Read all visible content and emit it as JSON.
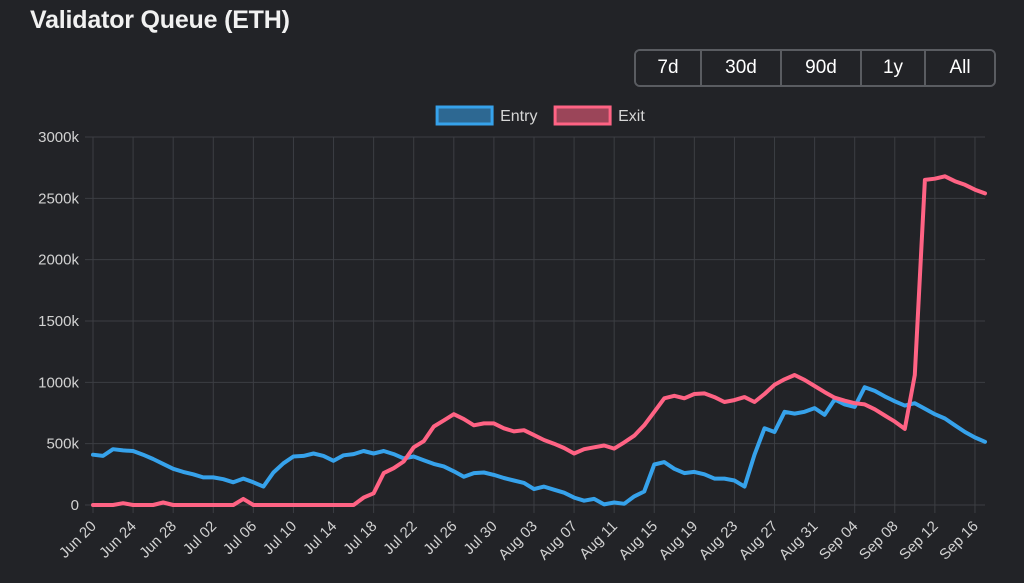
{
  "page": {
    "title": "Validator Queue (ETH)"
  },
  "range_buttons": [
    {
      "label": "7d"
    },
    {
      "label": "30d"
    },
    {
      "label": "90d"
    },
    {
      "label": "1y"
    },
    {
      "label": "All"
    }
  ],
  "chart_data": {
    "type": "line",
    "title": "Validator Queue (ETH)",
    "xlabel": "",
    "ylabel": "",
    "ylim": [
      0,
      3000000
    ],
    "y_ticks": [
      0,
      500000,
      1000000,
      1500000,
      2000000,
      2500000,
      3000000
    ],
    "y_tick_labels": [
      "0",
      "500k",
      "1000k",
      "1500k",
      "2000k",
      "2500k",
      "3000k"
    ],
    "x_tick_labels": [
      "Jun 20",
      "Jun 24",
      "Jun 28",
      "Jul 02",
      "Jul 06",
      "Jul 10",
      "Jul 14",
      "Jul 18",
      "Jul 22",
      "Jul 26",
      "Jul 30",
      "Aug 03",
      "Aug 07",
      "Aug 11",
      "Aug 15",
      "Aug 19",
      "Aug 23",
      "Aug 27",
      "Aug 31",
      "Sep 04",
      "Sep 08",
      "Sep 12",
      "Sep 16"
    ],
    "x_start": "Jun 20",
    "x_end": "Sep 17",
    "grid": true,
    "legend_position": "top",
    "series": [
      {
        "name": "Entry",
        "color": "#36a2eb",
        "points": [
          [
            "Jun 20",
            410000
          ],
          [
            "Jun 21",
            400000
          ],
          [
            "Jun 22",
            455000
          ],
          [
            "Jun 23",
            445000
          ],
          [
            "Jun 24",
            440000
          ],
          [
            "Jun 25",
            410000
          ],
          [
            "Jun 26",
            375000
          ],
          [
            "Jun 27",
            335000
          ],
          [
            "Jun 28",
            295000
          ],
          [
            "Jun 29",
            270000
          ],
          [
            "Jun 30",
            250000
          ],
          [
            "Jul 01",
            225000
          ],
          [
            "Jul 02",
            225000
          ],
          [
            "Jul 03",
            210000
          ],
          [
            "Jul 04",
            185000
          ],
          [
            "Jul 05",
            215000
          ],
          [
            "Jul 06",
            185000
          ],
          [
            "Jul 07",
            150000
          ],
          [
            "Jul 08",
            265000
          ],
          [
            "Jul 09",
            340000
          ],
          [
            "Jul 10",
            395000
          ],
          [
            "Jul 11",
            400000
          ],
          [
            "Jul 12",
            420000
          ],
          [
            "Jul 13",
            400000
          ],
          [
            "Jul 14",
            360000
          ],
          [
            "Jul 15",
            405000
          ],
          [
            "Jul 16",
            415000
          ],
          [
            "Jul 17",
            440000
          ],
          [
            "Jul 18",
            420000
          ],
          [
            "Jul 19",
            440000
          ],
          [
            "Jul 20",
            415000
          ],
          [
            "Jul 21",
            380000
          ],
          [
            "Jul 22",
            395000
          ],
          [
            "Jul 23",
            365000
          ],
          [
            "Jul 24",
            335000
          ],
          [
            "Jul 25",
            315000
          ],
          [
            "Jul 26",
            275000
          ],
          [
            "Jul 27",
            230000
          ],
          [
            "Jul 28",
            260000
          ],
          [
            "Jul 29",
            265000
          ],
          [
            "Jul 30",
            245000
          ],
          [
            "Jul 31",
            220000
          ],
          [
            "Aug 01",
            200000
          ],
          [
            "Aug 02",
            180000
          ],
          [
            "Aug 03",
            130000
          ],
          [
            "Aug 04",
            150000
          ],
          [
            "Aug 05",
            125000
          ],
          [
            "Aug 06",
            100000
          ],
          [
            "Aug 07",
            60000
          ],
          [
            "Aug 08",
            35000
          ],
          [
            "Aug 09",
            50000
          ],
          [
            "Aug 10",
            5000
          ],
          [
            "Aug 11",
            20000
          ],
          [
            "Aug 12",
            10000
          ],
          [
            "Aug 13",
            70000
          ],
          [
            "Aug 14",
            110000
          ],
          [
            "Aug 15",
            330000
          ],
          [
            "Aug 16",
            350000
          ],
          [
            "Aug 17",
            295000
          ],
          [
            "Aug 18",
            260000
          ],
          [
            "Aug 19",
            270000
          ],
          [
            "Aug 20",
            250000
          ],
          [
            "Aug 21",
            215000
          ],
          [
            "Aug 22",
            215000
          ],
          [
            "Aug 23",
            200000
          ],
          [
            "Aug 24",
            150000
          ],
          [
            "Aug 25",
            410000
          ],
          [
            "Aug 26",
            625000
          ],
          [
            "Aug 27",
            595000
          ],
          [
            "Aug 28",
            760000
          ],
          [
            "Aug 29",
            745000
          ],
          [
            "Aug 30",
            760000
          ],
          [
            "Aug 31",
            790000
          ],
          [
            "Sep 01",
            735000
          ],
          [
            "Sep 02",
            860000
          ],
          [
            "Sep 03",
            820000
          ],
          [
            "Sep 04",
            800000
          ],
          [
            "Sep 05",
            960000
          ],
          [
            "Sep 06",
            930000
          ],
          [
            "Sep 07",
            885000
          ],
          [
            "Sep 08",
            845000
          ],
          [
            "Sep 09",
            810000
          ],
          [
            "Sep 10",
            830000
          ],
          [
            "Sep 11",
            785000
          ],
          [
            "Sep 12",
            740000
          ],
          [
            "Sep 13",
            705000
          ],
          [
            "Sep 14",
            650000
          ],
          [
            "Sep 15",
            595000
          ],
          [
            "Sep 16",
            550000
          ],
          [
            "Sep 17",
            515000
          ]
        ]
      },
      {
        "name": "Exit",
        "color": "#ff6384",
        "points": [
          [
            "Jun 20",
            0
          ],
          [
            "Jun 21",
            0
          ],
          [
            "Jun 22",
            0
          ],
          [
            "Jun 23",
            15000
          ],
          [
            "Jun 24",
            0
          ],
          [
            "Jun 25",
            0
          ],
          [
            "Jun 26",
            0
          ],
          [
            "Jun 27",
            20000
          ],
          [
            "Jun 28",
            0
          ],
          [
            "Jun 29",
            0
          ],
          [
            "Jun 30",
            0
          ],
          [
            "Jul 01",
            0
          ],
          [
            "Jul 02",
            0
          ],
          [
            "Jul 03",
            0
          ],
          [
            "Jul 04",
            0
          ],
          [
            "Jul 05",
            50000
          ],
          [
            "Jul 06",
            0
          ],
          [
            "Jul 07",
            0
          ],
          [
            "Jul 08",
            0
          ],
          [
            "Jul 09",
            0
          ],
          [
            "Jul 10",
            0
          ],
          [
            "Jul 11",
            0
          ],
          [
            "Jul 12",
            0
          ],
          [
            "Jul 13",
            0
          ],
          [
            "Jul 14",
            0
          ],
          [
            "Jul 15",
            0
          ],
          [
            "Jul 16",
            0
          ],
          [
            "Jul 17",
            60000
          ],
          [
            "Jul 18",
            95000
          ],
          [
            "Jul 19",
            260000
          ],
          [
            "Jul 20",
            300000
          ],
          [
            "Jul 21",
            355000
          ],
          [
            "Jul 22",
            470000
          ],
          [
            "Jul 23",
            520000
          ],
          [
            "Jul 24",
            640000
          ],
          [
            "Jul 25",
            690000
          ],
          [
            "Jul 26",
            740000
          ],
          [
            "Jul 27",
            700000
          ],
          [
            "Jul 28",
            650000
          ],
          [
            "Jul 29",
            665000
          ],
          [
            "Jul 30",
            665000
          ],
          [
            "Jul 31",
            625000
          ],
          [
            "Aug 01",
            600000
          ],
          [
            "Aug 02",
            610000
          ],
          [
            "Aug 03",
            570000
          ],
          [
            "Aug 04",
            530000
          ],
          [
            "Aug 05",
            500000
          ],
          [
            "Aug 06",
            465000
          ],
          [
            "Aug 07",
            420000
          ],
          [
            "Aug 08",
            455000
          ],
          [
            "Aug 09",
            470000
          ],
          [
            "Aug 10",
            485000
          ],
          [
            "Aug 11",
            460000
          ],
          [
            "Aug 12",
            510000
          ],
          [
            "Aug 13",
            565000
          ],
          [
            "Aug 14",
            650000
          ],
          [
            "Aug 15",
            760000
          ],
          [
            "Aug 16",
            870000
          ],
          [
            "Aug 17",
            890000
          ],
          [
            "Aug 18",
            870000
          ],
          [
            "Aug 19",
            905000
          ],
          [
            "Aug 20",
            910000
          ],
          [
            "Aug 21",
            880000
          ],
          [
            "Aug 22",
            840000
          ],
          [
            "Aug 23",
            855000
          ],
          [
            "Aug 24",
            880000
          ],
          [
            "Aug 25",
            840000
          ],
          [
            "Aug 26",
            905000
          ],
          [
            "Aug 27",
            980000
          ],
          [
            "Aug 28",
            1025000
          ],
          [
            "Aug 29",
            1060000
          ],
          [
            "Aug 30",
            1020000
          ],
          [
            "Aug 31",
            970000
          ],
          [
            "Sep 01",
            920000
          ],
          [
            "Sep 02",
            875000
          ],
          [
            "Sep 03",
            850000
          ],
          [
            "Sep 04",
            830000
          ],
          [
            "Sep 05",
            820000
          ],
          [
            "Sep 06",
            780000
          ],
          [
            "Sep 07",
            730000
          ],
          [
            "Sep 08",
            680000
          ],
          [
            "Sep 09",
            620000
          ],
          [
            "Sep 10",
            1060000
          ],
          [
            "Sep 11",
            2650000
          ],
          [
            "Sep 12",
            2660000
          ],
          [
            "Sep 13",
            2680000
          ],
          [
            "Sep 14",
            2640000
          ],
          [
            "Sep 15",
            2610000
          ],
          [
            "Sep 16",
            2570000
          ],
          [
            "Sep 17",
            2540000
          ]
        ]
      }
    ]
  }
}
